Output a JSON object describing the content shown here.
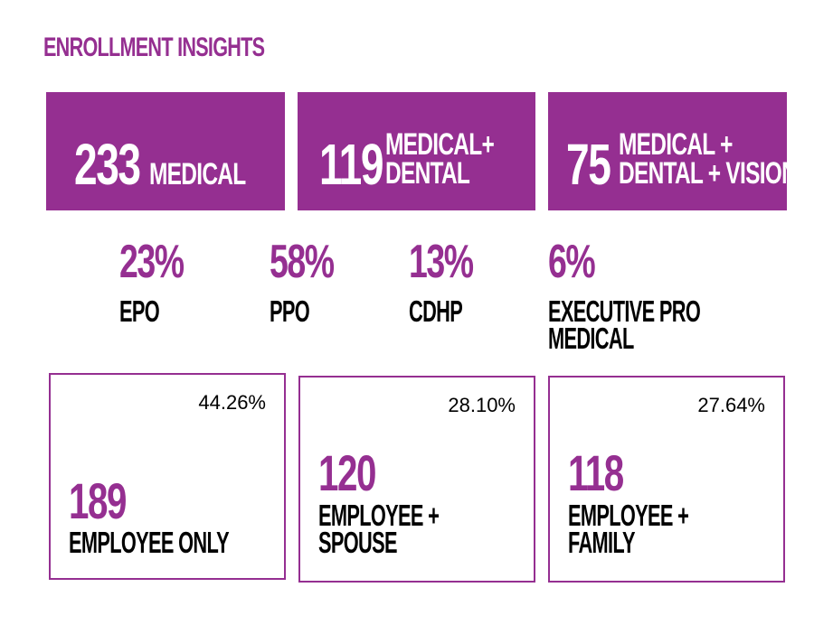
{
  "header": {
    "title": "ENROLLMENT INSIGHTS"
  },
  "coverage": [
    {
      "count": "233",
      "label_lines": [
        "MEDICAL"
      ]
    },
    {
      "count": "119",
      "label_lines": [
        "MEDICAL+",
        "DENTAL"
      ]
    },
    {
      "count": "75",
      "label_lines": [
        "MEDICAL +",
        "DENTAL + VISION"
      ]
    }
  ],
  "plans": [
    {
      "percent": "23%",
      "name_lines": [
        "EPO"
      ]
    },
    {
      "percent": "58%",
      "name_lines": [
        "PPO"
      ]
    },
    {
      "percent": "13%",
      "name_lines": [
        "CDHP"
      ]
    },
    {
      "percent": "6%",
      "name_lines": [
        "EXECUTIVE PRO",
        "MEDICAL"
      ]
    }
  ],
  "tiers": [
    {
      "share": "44.26%",
      "count": "189",
      "label_lines": [
        "EMPLOYEE ONLY"
      ]
    },
    {
      "share": "28.10%",
      "count": "120",
      "label_lines": [
        "EMPLOYEE +",
        "SPOUSE"
      ]
    },
    {
      "share": "27.64%",
      "count": "118",
      "label_lines": [
        "EMPLOYEE +",
        "FAMILY"
      ]
    }
  ],
  "colors": {
    "accent": "#952f91",
    "text": "#000000",
    "on_accent": "#ffffff"
  }
}
